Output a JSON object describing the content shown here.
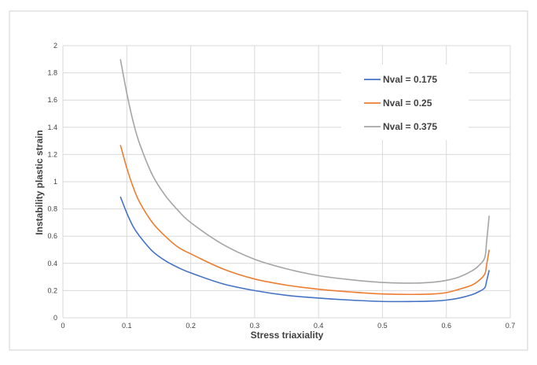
{
  "colors": {
    "background": "#ffffff",
    "frame": "#d0d0d0",
    "grid": "#d9d9d9",
    "series_blue": "#4472c4",
    "series_orange": "#ed7d31",
    "series_gray": "#a5a5a5"
  },
  "chart_data": {
    "type": "line",
    "title": "",
    "xlabel": "Stress triaxiality",
    "ylabel": "Instability plastic strain",
    "xlim": [
      0,
      0.7
    ],
    "ylim": [
      0,
      2
    ],
    "xticks": [
      0,
      0.1,
      0.2,
      0.3,
      0.4,
      0.5,
      0.6,
      0.7
    ],
    "yticks": [
      0,
      0.2,
      0.4,
      0.6,
      0.8,
      1,
      1.2,
      1.4,
      1.6,
      1.8,
      2
    ],
    "xtick_labels": [
      "0",
      "0.1",
      "0.2",
      "0.3",
      "0.4",
      "0.5",
      "0.6",
      "0.7"
    ],
    "ytick_labels": [
      "0",
      "0.2",
      "0.4",
      "0.6",
      "0.8",
      "1",
      "1.2",
      "1.4",
      "1.6",
      "1.8",
      "2"
    ],
    "grid": true,
    "legend_position": "top-right",
    "series": [
      {
        "name": "Nval = 0.175",
        "color": "#4472c4",
        "x": [
          0.09,
          0.1,
          0.11,
          0.12,
          0.14,
          0.16,
          0.18,
          0.2,
          0.25,
          0.3,
          0.35,
          0.4,
          0.45,
          0.5,
          0.55,
          0.58,
          0.6,
          0.62,
          0.64,
          0.65,
          0.66,
          0.663,
          0.667
        ],
        "y": [
          0.89,
          0.77,
          0.67,
          0.6,
          0.49,
          0.42,
          0.37,
          0.33,
          0.25,
          0.2,
          0.165,
          0.145,
          0.13,
          0.12,
          0.12,
          0.123,
          0.13,
          0.145,
          0.17,
          0.19,
          0.22,
          0.27,
          0.35
        ]
      },
      {
        "name": "Nval = 0.25",
        "color": "#ed7d31",
        "x": [
          0.09,
          0.1,
          0.11,
          0.12,
          0.14,
          0.16,
          0.18,
          0.2,
          0.25,
          0.3,
          0.35,
          0.4,
          0.45,
          0.5,
          0.55,
          0.58,
          0.6,
          0.62,
          0.64,
          0.65,
          0.66,
          0.663,
          0.667
        ],
        "y": [
          1.27,
          1.1,
          0.96,
          0.85,
          0.7,
          0.6,
          0.52,
          0.47,
          0.36,
          0.285,
          0.24,
          0.21,
          0.19,
          0.175,
          0.172,
          0.175,
          0.185,
          0.21,
          0.24,
          0.27,
          0.32,
          0.39,
          0.5
        ]
      },
      {
        "name": "Nval = 0.375",
        "color": "#a5a5a5",
        "x": [
          0.09,
          0.1,
          0.11,
          0.12,
          0.14,
          0.16,
          0.18,
          0.2,
          0.25,
          0.3,
          0.35,
          0.4,
          0.45,
          0.5,
          0.55,
          0.58,
          0.6,
          0.62,
          0.64,
          0.65,
          0.66,
          0.663,
          0.667
        ],
        "y": [
          1.9,
          1.65,
          1.44,
          1.28,
          1.05,
          0.9,
          0.79,
          0.7,
          0.54,
          0.43,
          0.36,
          0.31,
          0.28,
          0.26,
          0.255,
          0.262,
          0.275,
          0.3,
          0.345,
          0.38,
          0.44,
          0.56,
          0.75
        ]
      }
    ]
  }
}
